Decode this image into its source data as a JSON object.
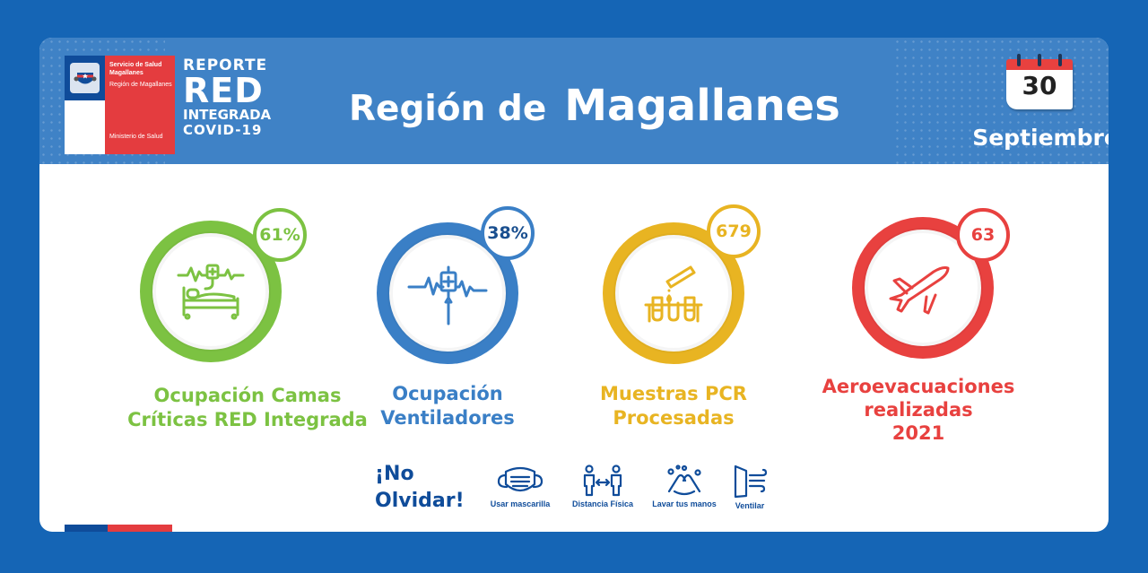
{
  "logo": {
    "line1": "Servicio de Salud Magallanes",
    "line2": "Región de Magallanes",
    "line3": "Ministerio de Salud",
    "icon": "chile-coat-of-arms-icon"
  },
  "report": {
    "line1": "REPORTE",
    "line2": "RED",
    "line3": "INTEGRADA",
    "line4": "COVID-19"
  },
  "title": {
    "prefix": "Región de",
    "main": "Magallanes"
  },
  "date": {
    "day": "30",
    "month": "Septiembre",
    "icon": "calendar-icon"
  },
  "metrics": [
    {
      "value": "61%",
      "label_line1": "Ocupación Camas",
      "label_line2": "Críticas RED Integrada",
      "label_line3": "",
      "color": "#7cc242",
      "icon": "hospital-bed-icon",
      "fill_fraction": 0.61
    },
    {
      "value": "38%",
      "label_line1": "Ocupación",
      "label_line2": "Ventiladores",
      "label_line3": "",
      "color": "#3a7fc6",
      "icon": "ventilator-icon",
      "fill_fraction": 0.38
    },
    {
      "value": "679",
      "label_line1": "Muestras PCR",
      "label_line2": "Procesadas",
      "label_line3": "",
      "color": "#e8b422",
      "icon": "test-tubes-icon"
    },
    {
      "value": "63",
      "label_line1": "Aeroevacuaciones",
      "label_line2": "realizadas",
      "label_line3": "2021",
      "color": "#e8413f",
      "icon": "airplane-icon"
    }
  ],
  "reminder": {
    "line1": "¡No",
    "line2": "Olvidar!",
    "tips": [
      {
        "label": "Usar mascarilla",
        "icon": "face-mask-icon"
      },
      {
        "label": "Distancia Física",
        "icon": "physical-distance-icon"
      },
      {
        "label": "Lavar tus manos",
        "icon": "hand-washing-icon"
      },
      {
        "label": "Ventilar",
        "icon": "window-ventilate-icon"
      }
    ]
  }
}
